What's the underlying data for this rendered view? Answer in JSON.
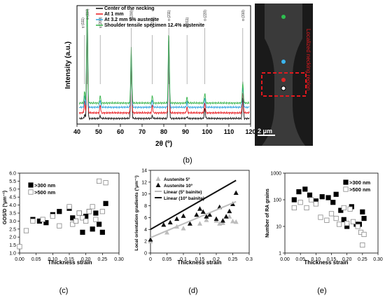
{
  "panel_labels": [
    "(b)",
    "(c)",
    "(d)",
    "(e)"
  ],
  "micrograph": {
    "overlay_label": "Localized necking region",
    "scale_bar_label": "2 μm",
    "marker_colors": [
      "#2dbf4f",
      "#3bb5ee",
      "#e02525",
      "#ffffff"
    ],
    "box_color": "#e0191e"
  },
  "chart_data": [
    {
      "id": "xrd",
      "type": "line",
      "xlabel": "2θ (º)",
      "ylabel": "Intensity (a.u.)",
      "xlim": [
        40,
        120
      ],
      "xticks": [
        40,
        50,
        60,
        70,
        80,
        90,
        100,
        110,
        120
      ],
      "legend_position": "top-left",
      "series": [
        {
          "name": "Center of the necking",
          "color": "#111111",
          "offset": 0
        },
        {
          "name": "At 1 mm",
          "color": "#e8191e",
          "offset": 1
        },
        {
          "name": "At 3.2 mm 5% austenite",
          "color": "#2ea3df",
          "offset": 2
        },
        {
          "name": "Shoulder tensile specimen 12.4% austenite",
          "color": "#37b34a",
          "offset": 3
        }
      ],
      "peaks": [
        {
          "label": "γ (111)",
          "x": 43.5,
          "kind": "austenite",
          "height": 0.12
        },
        {
          "label": "α (110)",
          "x": 44.7,
          "kind": "ferrite",
          "height": 1.0
        },
        {
          "label": "γ (200)",
          "x": 50.7,
          "kind": "austenite",
          "height": 0.08
        },
        {
          "label": "α (200)",
          "x": 65.0,
          "kind": "ferrite",
          "height": 0.55
        },
        {
          "label": "γ (220)",
          "x": 74.7,
          "kind": "austenite",
          "height": 0.08
        },
        {
          "label": "α (211)",
          "x": 82.3,
          "kind": "ferrite",
          "height": 0.72
        },
        {
          "label": "γ (311)",
          "x": 90.7,
          "kind": "austenite",
          "height": 0.06
        },
        {
          "label": "α (220)",
          "x": 98.9,
          "kind": "ferrite",
          "height": 0.1
        },
        {
          "label": "α (310)",
          "x": 116.4,
          "kind": "ferrite",
          "height": 0.2
        }
      ]
    },
    {
      "id": "gos",
      "type": "scatter",
      "xlabel": "Thickness strain",
      "ylabel": "GOS/D (ºμm⁻¹)",
      "xlim": [
        0,
        0.3
      ],
      "ylim": [
        1.0,
        6.0
      ],
      "xticks": [
        "0.00",
        "0.05",
        "0.10",
        "0.15",
        "0.20",
        "0.25",
        "0.30"
      ],
      "yticks": [
        "1.0",
        "1.5",
        "2.0",
        "2.5",
        "3.0",
        "3.5",
        "4.0",
        "4.5",
        "5.0",
        "5.5",
        "6.0"
      ],
      "legend_position": "top-left",
      "series": [
        {
          "name": ">300 nm",
          "marker": "filled-square",
          "x": [
            0.04,
            0.06,
            0.08,
            0.1,
            0.12,
            0.15,
            0.16,
            0.17,
            0.18,
            0.19,
            0.2,
            0.21,
            0.22,
            0.23,
            0.24,
            0.25,
            0.26
          ],
          "y": [
            3.1,
            3.0,
            2.9,
            3.4,
            3.6,
            3.8,
            3.2,
            3.0,
            3.5,
            2.3,
            3.3,
            3.6,
            2.5,
            3.5,
            2.8,
            2.3,
            4.1
          ]
        },
        {
          "name": ">500 nm",
          "marker": "open-square",
          "x": [
            0.0,
            0.02,
            0.04,
            0.07,
            0.1,
            0.12,
            0.15,
            0.16,
            0.17,
            0.18,
            0.19,
            0.2,
            0.21,
            0.22,
            0.23,
            0.24,
            0.25,
            0.26
          ],
          "y": [
            1.4,
            2.4,
            3.0,
            3.1,
            3.3,
            2.7,
            3.9,
            2.8,
            3.0,
            3.5,
            3.2,
            3.0,
            3.6,
            3.9,
            3.1,
            5.5,
            3.6,
            5.4
          ]
        }
      ]
    },
    {
      "id": "lograd",
      "type": "scatter",
      "xlabel": "Thickness strain",
      "ylabel": "Local orientation gradients (ºμm⁻¹)",
      "xlim": [
        0,
        0.3
      ],
      "ylim": [
        0,
        14
      ],
      "xticks": [
        "0",
        "0.05",
        "0.1",
        "0.15",
        "0.2",
        "0.25",
        "0.3"
      ],
      "yticks": [
        "0",
        "2",
        "4",
        "6",
        "8",
        "10",
        "12",
        "14"
      ],
      "legend_position": "top-left",
      "series": [
        {
          "name": "Austenite 5º",
          "marker": "triangle",
          "color": "#bdbdbd",
          "x": [
            0.0,
            0.05,
            0.08,
            0.1,
            0.15,
            0.17,
            0.2,
            0.21,
            0.22,
            0.24,
            0.25,
            0.26
          ],
          "y": [
            2.0,
            3.5,
            4.5,
            4.2,
            5.0,
            5.6,
            5.5,
            5.0,
            5.1,
            6.2,
            5.4,
            5.3
          ]
        },
        {
          "name": "Austenite 10º",
          "marker": "triangle",
          "color": "#111111",
          "x": [
            0.0,
            0.04,
            0.06,
            0.08,
            0.1,
            0.12,
            0.14,
            0.15,
            0.16,
            0.17,
            0.18,
            0.2,
            0.21,
            0.22,
            0.23,
            0.24,
            0.25,
            0.26
          ],
          "y": [
            2.3,
            4.8,
            5.2,
            5.8,
            6.3,
            5.0,
            6.5,
            7.5,
            7.0,
            6.2,
            6.5,
            5.8,
            7.8,
            5.5,
            6.2,
            7.1,
            8.3,
            10.2
          ]
        },
        {
          "name": "Linear (5º bainite)",
          "marker": "line",
          "color": "#bdbdbd",
          "x": [
            0,
            0.26
          ],
          "y": [
            2.6,
            8.7
          ]
        },
        {
          "name": "Linear (10º bainite)",
          "marker": "line",
          "color": "#111111",
          "x": [
            0,
            0.26
          ],
          "y": [
            4.0,
            12.3
          ]
        }
      ]
    },
    {
      "id": "ragrains",
      "type": "scatter",
      "xlabel": "Thickness strain",
      "ylabel": "Number of RA grains",
      "xlim": [
        0,
        0.3
      ],
      "ylim": [
        1,
        1000
      ],
      "yscale": "log",
      "xticks": [
        "0.00",
        "0.05",
        "0.10",
        "0.15",
        "0.20",
        "0.25",
        "0.30"
      ],
      "yticks": [
        "1",
        "10",
        "100",
        "1000"
      ],
      "legend_position": "top-right",
      "series": [
        {
          "name": ">300 nm",
          "marker": "filled-square",
          "x": [
            0.03,
            0.045,
            0.065,
            0.08,
            0.1,
            0.12,
            0.14,
            0.155,
            0.165,
            0.18,
            0.19,
            0.2,
            0.215,
            0.23,
            0.24,
            0.25,
            0.255
          ],
          "y": [
            100,
            200,
            250,
            150,
            90,
            130,
            120,
            80,
            160,
            40,
            18,
            10,
            55,
            12,
            12,
            35,
            20
          ]
        },
        {
          "name": ">500 nm",
          "marker": "open-square",
          "x": [
            0.03,
            0.05,
            0.07,
            0.085,
            0.1,
            0.115,
            0.135,
            0.15,
            0.165,
            0.175,
            0.19,
            0.2,
            0.21,
            0.22,
            0.235,
            0.245,
            0.25,
            0.255
          ],
          "y": [
            50,
            80,
            50,
            100,
            70,
            22,
            17,
            30,
            20,
            12,
            50,
            13,
            45,
            15,
            10,
            6,
            2,
            5
          ]
        }
      ]
    }
  ]
}
